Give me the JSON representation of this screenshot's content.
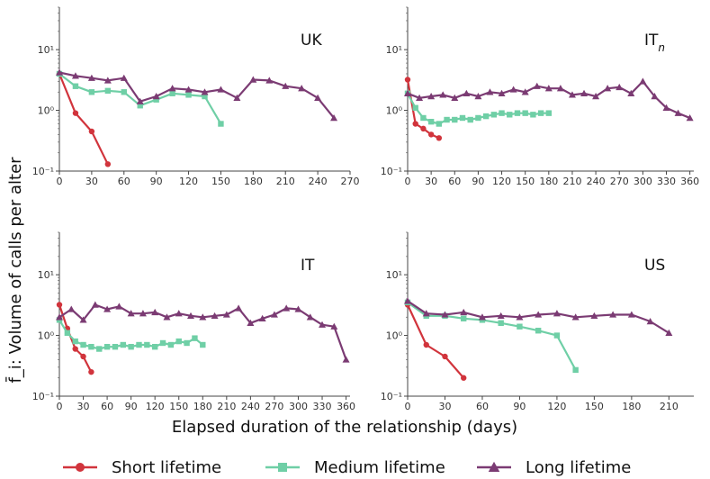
{
  "chart_data": {
    "type": "line",
    "xlabel": "Elapsed duration of the relationship (days)",
    "ylabel": "f̄_i: Volume of calls per alter",
    "yscale": "log",
    "ylim": [
      0.1,
      50
    ],
    "grid": false,
    "legend_position": "bottom",
    "colors": {
      "short": "#d1343c",
      "medium": "#6fcfa6",
      "long": "#7b3b73"
    },
    "legend": [
      {
        "label": "Short lifetime",
        "marker": "circle",
        "color": "#d1343c"
      },
      {
        "label": "Medium lifetime",
        "marker": "square",
        "color": "#6fcfa6"
      },
      {
        "label": "Long lifetime",
        "marker": "triangle",
        "color": "#7b3b73"
      }
    ],
    "panels": [
      {
        "label": "UK",
        "label_sub": "",
        "xlim": [
          0,
          270
        ],
        "xticks": [
          "0",
          "30",
          "60",
          "90",
          "120",
          "150",
          "180",
          "210",
          "240",
          "270"
        ],
        "yticks": [
          "10⁻¹",
          "10⁰",
          "10¹"
        ],
        "series": [
          {
            "group": "short",
            "x": [
              0,
              15,
              30,
              45
            ],
            "y": [
              4.0,
              0.9,
              0.45,
              0.13
            ]
          },
          {
            "group": "medium",
            "x": [
              0,
              15,
              30,
              45,
              60,
              75,
              90,
              105,
              120,
              135,
              150
            ],
            "y": [
              4.0,
              2.5,
              2.0,
              2.1,
              2.0,
              1.2,
              1.5,
              1.9,
              1.8,
              1.7,
              0.6
            ]
          },
          {
            "group": "long",
            "x": [
              0,
              15,
              30,
              45,
              60,
              75,
              90,
              105,
              120,
              135,
              150,
              165,
              180,
              195,
              210,
              225,
              240,
              255
            ],
            "y": [
              4.2,
              3.7,
              3.4,
              3.1,
              3.4,
              1.4,
              1.7,
              2.3,
              2.2,
              2.0,
              2.2,
              1.6,
              3.2,
              3.1,
              2.5,
              2.3,
              1.6,
              0.75
            ]
          }
        ]
      },
      {
        "label": "IT",
        "label_sub": "n",
        "xlim": [
          0,
          365
        ],
        "xticks": [
          "0",
          "30",
          "60",
          "90",
          "120",
          "150",
          "180",
          "210",
          "240",
          "270",
          "300",
          "330",
          "360"
        ],
        "yticks": [
          "10⁻¹",
          "10⁰",
          "10¹"
        ],
        "series": [
          {
            "group": "short",
            "x": [
              0,
              10,
              20,
              30,
              40
            ],
            "y": [
              3.2,
              0.6,
              0.5,
              0.4,
              0.35
            ]
          },
          {
            "group": "medium",
            "x": [
              0,
              10,
              20,
              30,
              40,
              50,
              60,
              70,
              80,
              90,
              100,
              110,
              120,
              130,
              140,
              150,
              160,
              170,
              180
            ],
            "y": [
              1.9,
              1.1,
              0.75,
              0.65,
              0.6,
              0.7,
              0.7,
              0.75,
              0.7,
              0.75,
              0.8,
              0.85,
              0.9,
              0.85,
              0.9,
              0.9,
              0.85,
              0.9,
              0.9
            ]
          },
          {
            "group": "long",
            "x": [
              0,
              15,
              30,
              45,
              60,
              75,
              90,
              105,
              120,
              135,
              150,
              165,
              180,
              195,
              210,
              225,
              240,
              255,
              270,
              285,
              300,
              315,
              330,
              345,
              360
            ],
            "y": [
              1.9,
              1.6,
              1.7,
              1.8,
              1.6,
              1.9,
              1.7,
              2.0,
              1.9,
              2.2,
              2.0,
              2.5,
              2.3,
              2.3,
              1.8,
              1.9,
              1.7,
              2.3,
              2.4,
              1.9,
              3.0,
              1.7,
              1.1,
              0.9,
              0.75
            ]
          }
        ]
      },
      {
        "label": "IT",
        "label_sub": "",
        "xlim": [
          0,
          365
        ],
        "xticks": [
          "0",
          "30",
          "60",
          "90",
          "120",
          "150",
          "180",
          "210",
          "240",
          "270",
          "300",
          "330",
          "360"
        ],
        "yticks": [
          "10⁻¹",
          "10⁰",
          "10¹"
        ],
        "series": [
          {
            "group": "short",
            "x": [
              0,
              10,
              20,
              30,
              40
            ],
            "y": [
              3.2,
              1.3,
              0.6,
              0.45,
              0.25
            ]
          },
          {
            "group": "medium",
            "x": [
              0,
              10,
              20,
              30,
              40,
              50,
              60,
              70,
              80,
              90,
              100,
              110,
              120,
              130,
              140,
              150,
              160,
              170,
              180
            ],
            "y": [
              1.8,
              1.1,
              0.8,
              0.7,
              0.65,
              0.6,
              0.65,
              0.65,
              0.7,
              0.65,
              0.7,
              0.7,
              0.65,
              0.75,
              0.7,
              0.8,
              0.75,
              0.9,
              0.7
            ]
          },
          {
            "group": "long",
            "x": [
              0,
              15,
              30,
              45,
              60,
              75,
              90,
              105,
              120,
              135,
              150,
              165,
              180,
              195,
              210,
              225,
              240,
              255,
              270,
              285,
              300,
              315,
              330,
              345,
              360
            ],
            "y": [
              2.0,
              2.7,
              1.8,
              3.2,
              2.7,
              3.0,
              2.3,
              2.3,
              2.4,
              2.0,
              2.3,
              2.1,
              2.0,
              2.1,
              2.2,
              2.8,
              1.6,
              1.9,
              2.2,
              2.8,
              2.7,
              2.0,
              1.5,
              1.4,
              0.4
            ]
          }
        ]
      },
      {
        "label": "US",
        "label_sub": "",
        "xlim": [
          0,
          230
        ],
        "xticks": [
          "0",
          "30",
          "60",
          "90",
          "120",
          "150",
          "180",
          "210"
        ],
        "yticks": [
          "10⁻¹",
          "10⁰",
          "10¹"
        ],
        "series": [
          {
            "group": "short",
            "x": [
              0,
              15,
              30,
              45
            ],
            "y": [
              3.2,
              0.7,
              0.45,
              0.2
            ]
          },
          {
            "group": "medium",
            "x": [
              0,
              15,
              30,
              45,
              60,
              75,
              90,
              105,
              120,
              135
            ],
            "y": [
              3.5,
              2.1,
              2.1,
              1.9,
              1.8,
              1.6,
              1.4,
              1.2,
              1.0,
              0.27
            ]
          },
          {
            "group": "long",
            "x": [
              0,
              15,
              30,
              45,
              60,
              75,
              90,
              105,
              120,
              135,
              150,
              165,
              180,
              195,
              210
            ],
            "y": [
              3.7,
              2.3,
              2.2,
              2.4,
              2.0,
              2.1,
              2.0,
              2.2,
              2.3,
              2.0,
              2.1,
              2.2,
              2.2,
              1.7,
              1.1
            ]
          }
        ]
      }
    ]
  }
}
